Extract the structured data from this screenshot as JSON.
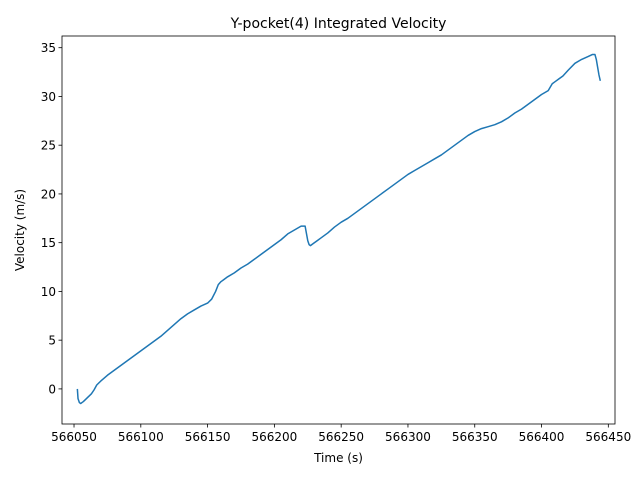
{
  "chart_data": {
    "type": "line",
    "title": "Y-pocket(4) Integrated Velocity",
    "xlabel": "Time (s)",
    "ylabel": "Velocity (m/s)",
    "xlim": [
      566041,
      566455
    ],
    "ylim": [
      -3.6,
      36.2
    ],
    "xticks": [
      566050,
      566100,
      566150,
      566200,
      566250,
      566300,
      566350,
      566400,
      566450
    ],
    "yticks": [
      0,
      5,
      10,
      15,
      20,
      25,
      30,
      35
    ],
    "grid": false,
    "series": [
      {
        "color": "#1f77b4",
        "x": [
          566052.5,
          566053.0,
          566054.0,
          566055.0,
          566057.0,
          566060.0,
          566063.0,
          566065.0,
          566067.0,
          566070.0,
          566075.0,
          566080.0,
          566085.0,
          566090.0,
          566095.0,
          566100.0,
          566105.0,
          566110.0,
          566115.0,
          566120.0,
          566125.0,
          566130.0,
          566135.0,
          566140.0,
          566145.0,
          566150.0,
          566153.0,
          566156.0,
          566158.0,
          566160.0,
          566162.0,
          566165.0,
          566170.0,
          566175.0,
          566180.0,
          566185.0,
          566190.0,
          566195.0,
          566200.0,
          566205.0,
          566210.0,
          566215.0,
          566220.0,
          566223.0,
          566225.0,
          566226.0,
          566227.0,
          566229.0,
          566232.0,
          566235.0,
          566240.0,
          566245.0,
          566250.0,
          566255.0,
          566260.0,
          566265.0,
          566270.0,
          566275.0,
          566280.0,
          566285.0,
          566290.0,
          566295.0,
          566300.0,
          566305.0,
          566310.0,
          566315.0,
          566320.0,
          566325.0,
          566330.0,
          566335.0,
          566340.0,
          566345.0,
          566350.0,
          566355.0,
          566360.0,
          566365.0,
          566370.0,
          566375.0,
          566380.0,
          566385.0,
          566390.0,
          566395.0,
          566400.0,
          566405.0,
          566408.0,
          566410.0,
          566413.0,
          566416.0,
          566420.0,
          566425.0,
          566430.0,
          566435.0,
          566438.0,
          566440.0,
          566441.0,
          566442.0,
          566443.0,
          566444.0
        ],
        "y": [
          0.0,
          -1.0,
          -1.4,
          -1.5,
          -1.3,
          -0.9,
          -0.5,
          -0.1,
          0.4,
          0.8,
          1.4,
          1.9,
          2.4,
          2.9,
          3.4,
          3.9,
          4.4,
          4.9,
          5.4,
          6.0,
          6.6,
          7.2,
          7.7,
          8.1,
          8.5,
          8.8,
          9.2,
          10.0,
          10.7,
          11.0,
          11.2,
          11.5,
          11.9,
          12.4,
          12.8,
          13.3,
          13.8,
          14.3,
          14.8,
          15.3,
          15.9,
          16.3,
          16.7,
          16.7,
          15.2,
          14.8,
          14.7,
          14.9,
          15.2,
          15.5,
          16.0,
          16.6,
          17.1,
          17.5,
          18.0,
          18.5,
          19.0,
          19.5,
          20.0,
          20.5,
          21.0,
          21.5,
          22.0,
          22.4,
          22.8,
          23.2,
          23.6,
          24.0,
          24.5,
          25.0,
          25.5,
          26.0,
          26.4,
          26.7,
          26.9,
          27.1,
          27.4,
          27.8,
          28.3,
          28.7,
          29.2,
          29.7,
          30.2,
          30.6,
          31.3,
          31.5,
          31.8,
          32.1,
          32.7,
          33.4,
          33.8,
          34.1,
          34.3,
          34.3,
          33.8,
          33.0,
          32.2,
          31.6
        ]
      }
    ]
  }
}
